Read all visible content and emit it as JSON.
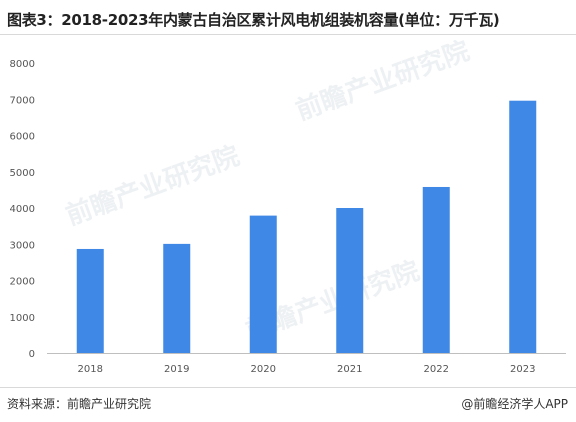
{
  "title": "图表3：2018-2023年内蒙古自治区累计风电机组装机容量(单位：万千瓦)",
  "source": "资料来源：前瞻产业研究院",
  "credit": "@前瞻经济学人APP",
  "watermark": "前瞻产业研究院",
  "colors": {
    "bar": "#3f88e6",
    "axis": "#bfbfbf"
  },
  "chart_data": {
    "type": "bar",
    "title": "图表3：2018-2023年内蒙古自治区累计风电机组装机容量(单位：万千瓦)",
    "xlabel": "",
    "ylabel": "",
    "categories": [
      "2018",
      "2019",
      "2020",
      "2021",
      "2022",
      "2023"
    ],
    "values": [
      2870,
      3010,
      3790,
      4000,
      4580,
      6960
    ],
    "ylim": [
      0,
      8000
    ],
    "yticks": [
      0,
      1000,
      2000,
      3000,
      4000,
      5000,
      6000,
      7000,
      8000
    ],
    "grid": false,
    "legend": "none"
  }
}
